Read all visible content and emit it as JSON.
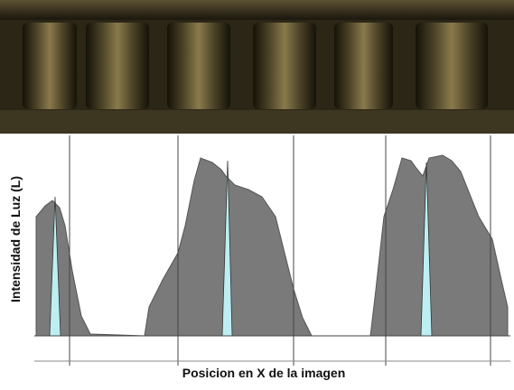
{
  "y_axis_label": "Intensidad de Luz (L)",
  "x_axis_label": "Posicion en X de la imagen"
}
